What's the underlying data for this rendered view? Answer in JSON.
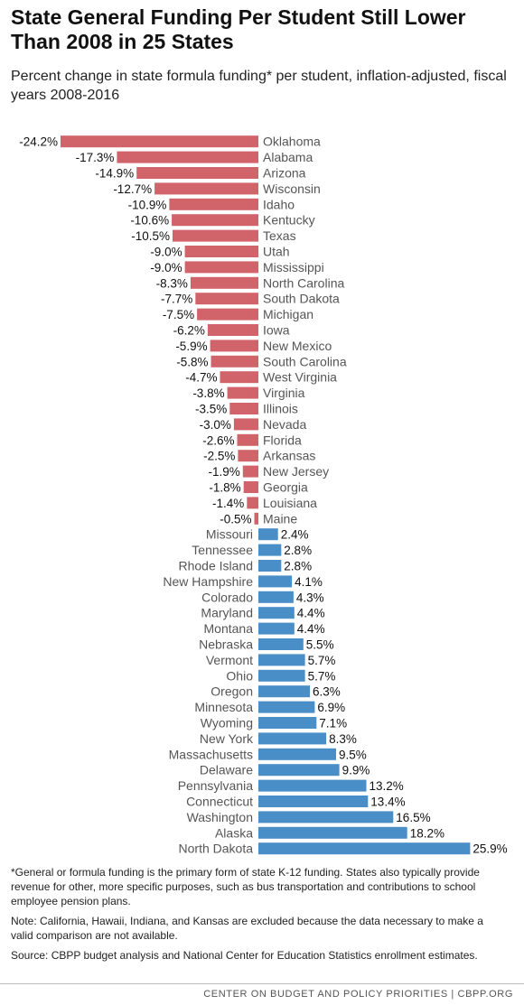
{
  "title": "State General Funding Per Student Still Lower Than 2008 in 25 States",
  "subtitle": "Percent change in state formula funding* per student, inflation-adjusted, fiscal years 2008-2016",
  "colors": {
    "negative": "#d1636b",
    "positive": "#4a8ec8",
    "label": "#555555"
  },
  "chart_data": {
    "type": "bar",
    "orientation": "horizontal",
    "title": "State General Funding Per Student Still Lower Than 2008 in 25 States",
    "subtitle": "Percent change in state formula funding* per student, inflation-adjusted, fiscal years 2008-2016",
    "xlim": [
      -24.2,
      25.9
    ],
    "grid": false,
    "categories": [
      "Oklahoma",
      "Alabama",
      "Arizona",
      "Wisconsin",
      "Idaho",
      "Kentucky",
      "Texas",
      "Utah",
      "Mississippi",
      "North Carolina",
      "South Dakota",
      "Michigan",
      "Iowa",
      "New Mexico",
      "South Carolina",
      "West Virginia",
      "Virginia",
      "Illinois",
      "Nevada",
      "Florida",
      "Arkansas",
      "New Jersey",
      "Georgia",
      "Louisiana",
      "Maine",
      "Missouri",
      "Tennessee",
      "Rhode Island",
      "New Hampshire",
      "Colorado",
      "Maryland",
      "Montana",
      "Nebraska",
      "Vermont",
      "Ohio",
      "Oregon",
      "Minnesota",
      "Wyoming",
      "New York",
      "Massachusetts",
      "Delaware",
      "Pennsylvania",
      "Connecticut",
      "Washington",
      "Alaska",
      "North Dakota"
    ],
    "values": [
      -24.2,
      -17.3,
      -14.9,
      -12.7,
      -10.9,
      -10.6,
      -10.5,
      -9.0,
      -9.0,
      -8.3,
      -7.7,
      -7.5,
      -6.2,
      -5.9,
      -5.8,
      -4.7,
      -3.8,
      -3.5,
      -3.0,
      -2.6,
      -2.5,
      -1.9,
      -1.8,
      -1.4,
      -0.5,
      2.4,
      2.8,
      2.8,
      4.1,
      4.3,
      4.4,
      4.4,
      5.5,
      5.7,
      5.7,
      6.3,
      6.9,
      7.1,
      8.3,
      9.5,
      9.9,
      13.2,
      13.4,
      16.5,
      18.2,
      25.9
    ],
    "value_labels": [
      "-24.2%",
      "-17.3%",
      "-14.9%",
      "-12.7%",
      "-10.9%",
      "-10.6%",
      "-10.5%",
      "-9.0%",
      "-9.0%",
      "-8.3%",
      "-7.7%",
      "-7.5%",
      "-6.2%",
      "-5.9%",
      "-5.8%",
      "-4.7%",
      "-3.8%",
      "-3.5%",
      "-3.0%",
      "-2.6%",
      "-2.5%",
      "-1.9%",
      "-1.8%",
      "-1.4%",
      "-0.5%",
      "2.4%",
      "2.8%",
      "2.8%",
      "4.1%",
      "4.3%",
      "4.4%",
      "4.4%",
      "5.5%",
      "5.7%",
      "5.7%",
      "6.3%",
      "6.9%",
      "7.1%",
      "8.3%",
      "9.5%",
      "9.9%",
      "13.2%",
      "13.4%",
      "16.5%",
      "18.2%",
      "25.9%"
    ]
  },
  "footnotes": {
    "general": "*General or formula funding is the primary form of state K-12 funding.  States also typically provide revenue for other, more specific purposes, such as bus transportation and contributions to school employee pension plans.",
    "note": "Note: California, Hawaii, Indiana, and Kansas are excluded because the data necessary to make a valid comparison are not available.",
    "source": "Source: CBPP budget analysis and National Center for Education Statistics enrollment estimates."
  },
  "footer": "CENTER ON BUDGET AND POLICY PRIORITIES | CBPP.ORG"
}
